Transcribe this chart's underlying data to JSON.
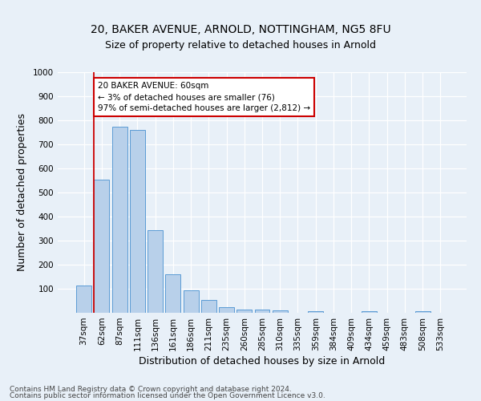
{
  "title1": "20, BAKER AVENUE, ARNOLD, NOTTINGHAM, NG5 8FU",
  "title2": "Size of property relative to detached houses in Arnold",
  "xlabel": "Distribution of detached houses by size in Arnold",
  "ylabel": "Number of detached properties",
  "bar_labels": [
    "37sqm",
    "62sqm",
    "87sqm",
    "111sqm",
    "136sqm",
    "161sqm",
    "186sqm",
    "211sqm",
    "235sqm",
    "260sqm",
    "285sqm",
    "310sqm",
    "335sqm",
    "359sqm",
    "384sqm",
    "409sqm",
    "434sqm",
    "459sqm",
    "483sqm",
    "508sqm",
    "533sqm"
  ],
  "bar_values": [
    113,
    555,
    775,
    760,
    345,
    160,
    95,
    55,
    22,
    13,
    12,
    10,
    0,
    8,
    0,
    0,
    8,
    0,
    0,
    8,
    0
  ],
  "bar_color": "#b8d0ea",
  "bar_edge_color": "#5b9bd5",
  "highlight_color": "#cc0000",
  "annotation_text": "20 BAKER AVENUE: 60sqm\n← 3% of detached houses are smaller (76)\n97% of semi-detached houses are larger (2,812) →",
  "annotation_box_color": "#ffffff",
  "annotation_box_edge": "#cc0000",
  "ylim": [
    0,
    1000
  ],
  "yticks": [
    0,
    100,
    200,
    300,
    400,
    500,
    600,
    700,
    800,
    900,
    1000
  ],
  "footer1": "Contains HM Land Registry data © Crown copyright and database right 2024.",
  "footer2": "Contains public sector information licensed under the Open Government Licence v3.0.",
  "bg_color": "#e8f0f8",
  "plot_bg": "#e8f0f8",
  "title1_fontsize": 10,
  "title2_fontsize": 9,
  "xlabel_fontsize": 9,
  "ylabel_fontsize": 9,
  "tick_fontsize": 7.5,
  "footer_fontsize": 6.5
}
